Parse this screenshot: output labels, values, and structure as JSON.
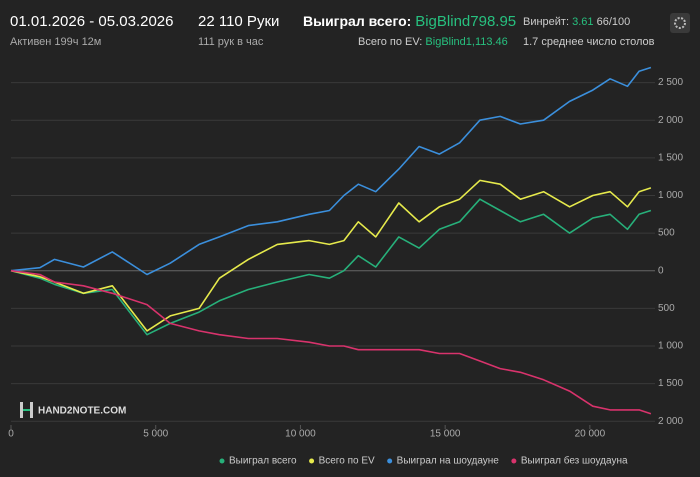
{
  "header": {
    "date_range": "01.01.2026 - 05.03.2026",
    "active": "Активен 199ч 12м",
    "hands": "22 110 Руки",
    "hands_per_hour": "111 рук в час",
    "won_label": "Выиграл всего:",
    "won_value": "BigBlind798.95",
    "ev_label": "Всего по EV:",
    "ev_value": "BigBlind1,113.46",
    "winrate_label": "Винрейт:",
    "winrate_value": "3.61",
    "winrate_unit": "66/100",
    "tables": "1.7 среднее число столов"
  },
  "logo": "HAND2NOTE.COM",
  "chart_data": {
    "type": "line",
    "x": [
      0,
      1000,
      1500,
      2500,
      3500,
      4700,
      5500,
      6500,
      7200,
      8200,
      9200,
      10300,
      11000,
      11500,
      12000,
      12600,
      13400,
      14100,
      14800,
      15500,
      16200,
      16900,
      17600,
      18400,
      19300,
      20100,
      20700,
      21300,
      21700,
      22110
    ],
    "series": [
      {
        "name": "Выиграл всего",
        "color": "#27b07a",
        "values": [
          0,
          -100,
          -180,
          -300,
          -250,
          -850,
          -700,
          -550,
          -400,
          -250,
          -150,
          -50,
          -100,
          0,
          200,
          50,
          450,
          300,
          550,
          650,
          950,
          800,
          650,
          750,
          500,
          700,
          750,
          550,
          750,
          800
        ]
      },
      {
        "name": "Всего по EV",
        "color": "#e6ea4c",
        "values": [
          0,
          -80,
          -150,
          -300,
          -200,
          -800,
          -600,
          -500,
          -100,
          150,
          350,
          400,
          350,
          400,
          650,
          450,
          900,
          650,
          850,
          950,
          1200,
          1150,
          950,
          1050,
          850,
          1000,
          1050,
          850,
          1050,
          1100
        ]
      },
      {
        "name": "Выиграл на шоудауне",
        "color": "#3b8fdc",
        "values": [
          0,
          40,
          150,
          50,
          250,
          -50,
          100,
          350,
          450,
          600,
          650,
          750,
          800,
          1000,
          1150,
          1050,
          1350,
          1650,
          1550,
          1700,
          2000,
          2050,
          1950,
          2000,
          2250,
          2400,
          2550,
          2450,
          2650,
          2700
        ]
      },
      {
        "name": "Выиграл без шоудауна",
        "color": "#d8336c",
        "values": [
          0,
          -50,
          -150,
          -200,
          -300,
          -450,
          -700,
          -800,
          -850,
          -900,
          -900,
          -950,
          -1000,
          -1000,
          -1050,
          -1050,
          -1050,
          -1050,
          -1100,
          -1100,
          -1200,
          -1300,
          -1350,
          -1450,
          -1600,
          -1800,
          -1850,
          -1850,
          -1850,
          -1900
        ]
      }
    ],
    "xlim": [
      0,
      22250
    ],
    "xticks": [
      0,
      {
        "value": 5000,
        "label": "5 000"
      },
      {
        "value": 10000,
        "label": "10 000"
      },
      {
        "value": 15000,
        "label": "15 000"
      },
      {
        "value": 20000,
        "label": "20 000"
      }
    ],
    "ylim": [
      -2050,
      2800
    ],
    "yticks": [
      {
        "value": 2500,
        "label": "2 500"
      },
      {
        "value": 2000,
        "label": "2 000"
      },
      {
        "value": 1500,
        "label": "1 500"
      },
      {
        "value": 1000,
        "label": "1 000"
      },
      500,
      0,
      {
        "value": -500,
        "label": "500"
      },
      {
        "value": -1000,
        "label": "1 000"
      },
      {
        "value": -1500,
        "label": "1 500"
      },
      {
        "value": -2000,
        "label": "2 000"
      }
    ],
    "grid": true
  }
}
